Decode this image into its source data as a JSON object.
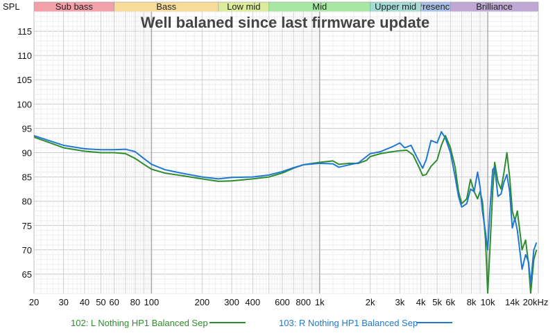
{
  "chart_data": {
    "type": "line",
    "title": "Well balaned since last firmware update",
    "ylabel": "SPL",
    "xscale": "log",
    "xlim": [
      20,
      20000
    ],
    "ylim": [
      61,
      119
    ],
    "grid": true,
    "legend_position": "bottom",
    "yticks": [
      {
        "value": 65,
        "label": "65"
      },
      {
        "value": 70,
        "label": "70"
      },
      {
        "value": 75,
        "label": "75"
      },
      {
        "value": 80,
        "label": "80"
      },
      {
        "value": 85,
        "label": "85"
      },
      {
        "value": 90,
        "label": "90"
      },
      {
        "value": 95,
        "label": "95"
      },
      {
        "value": 100,
        "label": "100"
      },
      {
        "value": 105,
        "label": "105"
      },
      {
        "value": 110,
        "label": "110"
      },
      {
        "value": 115,
        "label": "115"
      }
    ],
    "xticks": [
      {
        "value": 20,
        "label": "20"
      },
      {
        "value": 30,
        "label": "30"
      },
      {
        "value": 40,
        "label": "40"
      },
      {
        "value": 50,
        "label": "50"
      },
      {
        "value": 60,
        "label": "60"
      },
      {
        "value": 80,
        "label": "80"
      },
      {
        "value": 100,
        "label": "100"
      },
      {
        "value": 200,
        "label": "200"
      },
      {
        "value": 300,
        "label": "300"
      },
      {
        "value": 400,
        "label": "400"
      },
      {
        "value": 600,
        "label": "600"
      },
      {
        "value": 800,
        "label": "800"
      },
      {
        "value": 1000,
        "label": "1k"
      },
      {
        "value": 2000,
        "label": "2k"
      },
      {
        "value": 3000,
        "label": "3k"
      },
      {
        "value": 4000,
        "label": "4k"
      },
      {
        "value": 5000,
        "label": "5k"
      },
      {
        "value": 6000,
        "label": "6k"
      },
      {
        "value": 8000,
        "label": "8k"
      },
      {
        "value": 10000,
        "label": "10k"
      },
      {
        "value": 14000,
        "label": "14k"
      },
      {
        "value": 20000,
        "label": "20kHz"
      }
    ],
    "bands": [
      {
        "label": "Sub bass",
        "from": 20,
        "to": 60,
        "color": "#f4a0a8"
      },
      {
        "label": "Bass",
        "from": 60,
        "to": 250,
        "color": "#f6dc98"
      },
      {
        "label": "Low mid",
        "from": 250,
        "to": 500,
        "color": "#dcec9c"
      },
      {
        "label": "Mid",
        "from": 500,
        "to": 2000,
        "color": "#a8e8a4"
      },
      {
        "label": "Upper mid",
        "from": 2000,
        "to": 4000,
        "color": "#a4dcd4"
      },
      {
        "label": "Presence",
        "from": 4000,
        "to": 6000,
        "color": "#a8c0e8"
      },
      {
        "label": "Brilliance",
        "from": 6000,
        "to": 20000,
        "color": "#c0a8d4"
      }
    ],
    "series": [
      {
        "name": "102: L Nothing HP1 Balanced Sep",
        "color": "#2e8b2e",
        "points": [
          [
            20,
            93.2
          ],
          [
            25,
            92.0
          ],
          [
            30,
            91.0
          ],
          [
            40,
            90.3
          ],
          [
            50,
            90.0
          ],
          [
            60,
            90.0
          ],
          [
            70,
            89.8
          ],
          [
            80,
            88.8
          ],
          [
            90,
            87.6
          ],
          [
            100,
            86.6
          ],
          [
            120,
            85.8
          ],
          [
            150,
            85.3
          ],
          [
            200,
            84.6
          ],
          [
            250,
            84.1
          ],
          [
            300,
            84.2
          ],
          [
            400,
            84.6
          ],
          [
            500,
            85.0
          ],
          [
            600,
            85.8
          ],
          [
            700,
            86.8
          ],
          [
            800,
            87.5
          ],
          [
            1000,
            88.0
          ],
          [
            1200,
            88.3
          ],
          [
            1300,
            87.6
          ],
          [
            1500,
            87.8
          ],
          [
            1700,
            87.8
          ],
          [
            1900,
            88.4
          ],
          [
            2000,
            89.2
          ],
          [
            2300,
            89.8
          ],
          [
            2700,
            90.2
          ],
          [
            3000,
            90.4
          ],
          [
            3300,
            90.5
          ],
          [
            3600,
            89.5
          ],
          [
            3900,
            87.0
          ],
          [
            4100,
            85.3
          ],
          [
            4300,
            85.5
          ],
          [
            4600,
            87.2
          ],
          [
            5000,
            88.5
          ],
          [
            5300,
            91.5
          ],
          [
            5600,
            93.5
          ],
          [
            6000,
            91.0
          ],
          [
            6400,
            87.0
          ],
          [
            6700,
            82.0
          ],
          [
            7000,
            79.5
          ],
          [
            7500,
            80.5
          ],
          [
            7900,
            84.5
          ],
          [
            8300,
            82.0
          ],
          [
            8700,
            80.5
          ],
          [
            9000,
            82.0
          ],
          [
            9300,
            80.0
          ],
          [
            9700,
            72.0
          ],
          [
            10000,
            61.0
          ],
          [
            10300,
            70.0
          ],
          [
            10700,
            82.0
          ],
          [
            11000,
            88.0
          ],
          [
            11500,
            84.0
          ],
          [
            12000,
            82.5
          ],
          [
            12500,
            86.0
          ],
          [
            13000,
            90.0
          ],
          [
            13500,
            85.0
          ],
          [
            14000,
            78.0
          ],
          [
            14500,
            76.0
          ],
          [
            15000,
            78.0
          ],
          [
            15500,
            74.0
          ],
          [
            16000,
            70.0
          ],
          [
            16800,
            72.0
          ],
          [
            17500,
            67.0
          ],
          [
            18000,
            61.0
          ],
          [
            18800,
            68.0
          ],
          [
            19500,
            70.0
          ]
        ]
      },
      {
        "name": "103: R Nothing HP1 Balanced Sep",
        "color": "#1f78d1",
        "points": [
          [
            20,
            93.5
          ],
          [
            25,
            92.4
          ],
          [
            30,
            91.5
          ],
          [
            40,
            90.8
          ],
          [
            50,
            90.6
          ],
          [
            60,
            90.6
          ],
          [
            70,
            90.7
          ],
          [
            80,
            90.2
          ],
          [
            90,
            88.8
          ],
          [
            100,
            87.6
          ],
          [
            120,
            86.5
          ],
          [
            150,
            85.8
          ],
          [
            200,
            85.0
          ],
          [
            250,
            84.6
          ],
          [
            300,
            84.9
          ],
          [
            400,
            85.0
          ],
          [
            500,
            85.4
          ],
          [
            600,
            86.1
          ],
          [
            700,
            86.9
          ],
          [
            800,
            87.5
          ],
          [
            1000,
            87.8
          ],
          [
            1200,
            87.7
          ],
          [
            1300,
            87.0
          ],
          [
            1500,
            87.5
          ],
          [
            1700,
            87.9
          ],
          [
            1900,
            89.2
          ],
          [
            2000,
            89.8
          ],
          [
            2300,
            90.2
          ],
          [
            2700,
            91.2
          ],
          [
            3000,
            92.0
          ],
          [
            3200,
            91.0
          ],
          [
            3500,
            91.5
          ],
          [
            3800,
            89.0
          ],
          [
            4100,
            86.8
          ],
          [
            4300,
            88.5
          ],
          [
            4600,
            92.5
          ],
          [
            5000,
            92.0
          ],
          [
            5300,
            94.3
          ],
          [
            5600,
            93.0
          ],
          [
            6000,
            90.0
          ],
          [
            6400,
            85.0
          ],
          [
            6700,
            81.0
          ],
          [
            7000,
            78.8
          ],
          [
            7500,
            79.5
          ],
          [
            7900,
            82.5
          ],
          [
            8300,
            82.0
          ],
          [
            8700,
            86.0
          ],
          [
            9000,
            83.0
          ],
          [
            9300,
            78.0
          ],
          [
            9700,
            73.5
          ],
          [
            10000,
            70.0
          ],
          [
            10300,
            78.0
          ],
          [
            10700,
            86.5
          ],
          [
            11000,
            87.0
          ],
          [
            11500,
            81.0
          ],
          [
            12000,
            81.5
          ],
          [
            12500,
            84.0
          ],
          [
            13000,
            85.5
          ],
          [
            13500,
            82.0
          ],
          [
            14000,
            74.5
          ],
          [
            14500,
            76.5
          ],
          [
            15000,
            74.0
          ],
          [
            15500,
            70.0
          ],
          [
            16000,
            66.0
          ],
          [
            16800,
            69.0
          ],
          [
            17500,
            67.5
          ],
          [
            18000,
            63.0
          ],
          [
            18800,
            70.0
          ],
          [
            19500,
            71.5
          ]
        ]
      }
    ]
  }
}
